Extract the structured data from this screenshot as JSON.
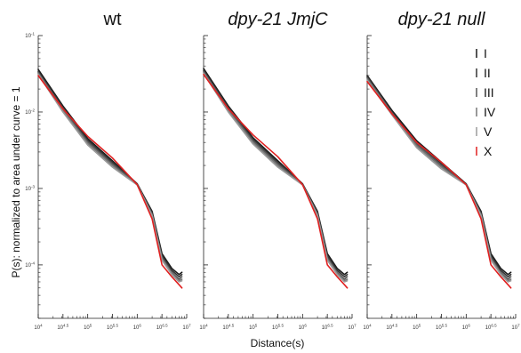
{
  "chart_data": {
    "type": "line",
    "x_scale": "log",
    "y_scale": "log",
    "xlim": [
      10000,
      10000000
    ],
    "ylim": [
      2e-05,
      0.1
    ],
    "xlabel": "Distance(s)",
    "ylabel": "P(s): normalized to area under curve = 1",
    "x_ticks": [
      {
        "value": 10000,
        "base": "10",
        "exp": "4"
      },
      {
        "value": 31622.8,
        "base": "10",
        "exp": "4.5"
      },
      {
        "value": 100000,
        "base": "10",
        "exp": "5"
      },
      {
        "value": 316228,
        "base": "10",
        "exp": "5.5"
      },
      {
        "value": 1000000,
        "base": "10",
        "exp": "6"
      },
      {
        "value": 3162280,
        "base": "10",
        "exp": "6.5"
      },
      {
        "value": 10000000,
        "base": "10",
        "exp": "7"
      }
    ],
    "y_ticks": [
      {
        "value": 0.1,
        "base": "10",
        "exp": "-1"
      },
      {
        "value": 0.01,
        "base": "10",
        "exp": "-2"
      },
      {
        "value": 0.001,
        "base": "10",
        "exp": "-3"
      },
      {
        "value": 0.0001,
        "base": "10",
        "exp": "-4"
      }
    ],
    "legend_position": "top-right",
    "panels": [
      {
        "title": "wt",
        "italic": false,
        "series": [
          {
            "name": "I",
            "color": "#1a1a1a",
            "x": [
              10000,
              31623,
              100000,
              316228,
              1000000,
              2000000,
              3162278,
              5000000,
              7000000,
              8000000
            ],
            "y": [
              0.036,
              0.012,
              0.0045,
              0.0023,
              0.00115,
              0.0005,
              0.00014,
              9e-05,
              7.5e-05,
              8e-05
            ]
          },
          {
            "name": "II",
            "color": "#333333",
            "x": [
              10000,
              31623,
              100000,
              316228,
              1000000,
              2000000,
              3162278,
              5000000,
              7000000,
              8000000
            ],
            "y": [
              0.034,
              0.0115,
              0.0043,
              0.0022,
              0.00115,
              0.00048,
              0.00013,
              8.5e-05,
              7e-05,
              7.5e-05
            ]
          },
          {
            "name": "III",
            "color": "#555555",
            "x": [
              10000,
              31623,
              100000,
              316228,
              1000000,
              2000000,
              3162278,
              5000000,
              7000000,
              8000000
            ],
            "y": [
              0.033,
              0.011,
              0.0041,
              0.0021,
              0.00113,
              0.00046,
              0.000125,
              8e-05,
              6.5e-05,
              7e-05
            ]
          },
          {
            "name": "IV",
            "color": "#777777",
            "x": [
              10000,
              31623,
              100000,
              316228,
              1000000,
              2000000,
              3162278,
              5000000,
              7000000,
              8000000
            ],
            "y": [
              0.032,
              0.0105,
              0.0039,
              0.002,
              0.00112,
              0.00045,
              0.00012,
              7.8e-05,
              6.2e-05,
              6.5e-05
            ]
          },
          {
            "name": "V",
            "color": "#9a9a9a",
            "x": [
              10000,
              31623,
              100000,
              316228,
              1000000,
              2000000,
              3162278,
              5000000,
              7000000,
              8000000
            ],
            "y": [
              0.031,
              0.01,
              0.0037,
              0.0019,
              0.00111,
              0.00044,
              0.000115,
              7.5e-05,
              6e-05,
              6.2e-05
            ]
          },
          {
            "name": "X",
            "color": "#e02020",
            "x": [
              10000,
              31623,
              100000,
              316228,
              1000000,
              2000000,
              3162278,
              5000000,
              7000000,
              8000000
            ],
            "y": [
              0.03,
              0.011,
              0.0048,
              0.0025,
              0.00112,
              0.0004,
              0.0001,
              7e-05,
              5.5e-05,
              5e-05
            ]
          }
        ]
      },
      {
        "title": "dpy-21 JmjC",
        "italic": true,
        "series": [
          {
            "name": "I",
            "color": "#1a1a1a",
            "x": [
              10000,
              31623,
              100000,
              316228,
              1000000,
              2000000,
              3162278,
              5000000,
              7000000,
              8000000
            ],
            "y": [
              0.037,
              0.012,
              0.0046,
              0.0023,
              0.00115,
              0.0005,
              0.00014,
              9e-05,
              7.5e-05,
              8e-05
            ]
          },
          {
            "name": "II",
            "color": "#333333",
            "x": [
              10000,
              31623,
              100000,
              316228,
              1000000,
              2000000,
              3162278,
              5000000,
              7000000,
              8000000
            ],
            "y": [
              0.035,
              0.0115,
              0.0044,
              0.0022,
              0.00115,
              0.00048,
              0.00013,
              8.5e-05,
              7e-05,
              7.5e-05
            ]
          },
          {
            "name": "III",
            "color": "#555555",
            "x": [
              10000,
              31623,
              100000,
              316228,
              1000000,
              2000000,
              3162278,
              5000000,
              7000000,
              8000000
            ],
            "y": [
              0.034,
              0.011,
              0.0042,
              0.0021,
              0.00113,
              0.00046,
              0.000125,
              8e-05,
              6.5e-05,
              7e-05
            ]
          },
          {
            "name": "IV",
            "color": "#777777",
            "x": [
              10000,
              31623,
              100000,
              316228,
              1000000,
              2000000,
              3162278,
              5000000,
              7000000,
              8000000
            ],
            "y": [
              0.033,
              0.0105,
              0.004,
              0.002,
              0.00112,
              0.00045,
              0.00012,
              7.8e-05,
              6.2e-05,
              6.5e-05
            ]
          },
          {
            "name": "V",
            "color": "#9a9a9a",
            "x": [
              10000,
              31623,
              100000,
              316228,
              1000000,
              2000000,
              3162278,
              5000000,
              7000000,
              8000000
            ],
            "y": [
              0.032,
              0.01,
              0.0038,
              0.0019,
              0.00111,
              0.00044,
              0.000115,
              7.5e-05,
              6e-05,
              6.2e-05
            ]
          },
          {
            "name": "X",
            "color": "#e02020",
            "x": [
              10000,
              31623,
              100000,
              316228,
              1000000,
              2000000,
              3162278,
              5000000,
              7000000,
              8000000
            ],
            "y": [
              0.031,
              0.011,
              0.005,
              0.0026,
              0.00112,
              0.0004,
              0.0001,
              7e-05,
              5.5e-05,
              5e-05
            ]
          }
        ]
      },
      {
        "title": "dpy-21 null",
        "italic": true,
        "series": [
          {
            "name": "I",
            "color": "#1a1a1a",
            "x": [
              10000,
              31623,
              100000,
              316228,
              1000000,
              2000000,
              3162278,
              5000000,
              7000000,
              8000000
            ],
            "y": [
              0.03,
              0.0105,
              0.0042,
              0.0022,
              0.00115,
              0.0005,
              0.00014,
              9e-05,
              7.5e-05,
              8e-05
            ]
          },
          {
            "name": "II",
            "color": "#333333",
            "x": [
              10000,
              31623,
              100000,
              316228,
              1000000,
              2000000,
              3162278,
              5000000,
              7000000,
              8000000
            ],
            "y": [
              0.029,
              0.01,
              0.004,
              0.0021,
              0.00115,
              0.00048,
              0.00013,
              8.5e-05,
              7e-05,
              7.5e-05
            ]
          },
          {
            "name": "III",
            "color": "#555555",
            "x": [
              10000,
              31623,
              100000,
              316228,
              1000000,
              2000000,
              3162278,
              5000000,
              7000000,
              8000000
            ],
            "y": [
              0.028,
              0.0098,
              0.0038,
              0.002,
              0.00113,
              0.00046,
              0.000125,
              8e-05,
              6.5e-05,
              7e-05
            ]
          },
          {
            "name": "IV",
            "color": "#777777",
            "x": [
              10000,
              31623,
              100000,
              316228,
              1000000,
              2000000,
              3162278,
              5000000,
              7000000,
              8000000
            ],
            "y": [
              0.027,
              0.0095,
              0.0036,
              0.0019,
              0.00112,
              0.00045,
              0.00012,
              7.8e-05,
              6.2e-05,
              6.5e-05
            ]
          },
          {
            "name": "V",
            "color": "#9a9a9a",
            "x": [
              10000,
              31623,
              100000,
              316228,
              1000000,
              2000000,
              3162278,
              5000000,
              7000000,
              8000000
            ],
            "y": [
              0.026,
              0.0092,
              0.0034,
              0.0018,
              0.00111,
              0.00044,
              0.000115,
              7.5e-05,
              6e-05,
              6.2e-05
            ]
          },
          {
            "name": "X",
            "color": "#e02020",
            "x": [
              10000,
              31623,
              100000,
              316228,
              1000000,
              2000000,
              3162278,
              5000000,
              7000000,
              8000000
            ],
            "y": [
              0.025,
              0.0095,
              0.004,
              0.0022,
              0.00112,
              0.0004,
              0.0001,
              7e-05,
              5.5e-05,
              5e-05
            ]
          }
        ]
      }
    ],
    "legend": [
      {
        "name": "I",
        "color": "#1a1a1a"
      },
      {
        "name": "II",
        "color": "#333333"
      },
      {
        "name": "III",
        "color": "#555555"
      },
      {
        "name": "IV",
        "color": "#777777"
      },
      {
        "name": "V",
        "color": "#9a9a9a"
      },
      {
        "name": "X",
        "color": "#e02020"
      }
    ]
  }
}
